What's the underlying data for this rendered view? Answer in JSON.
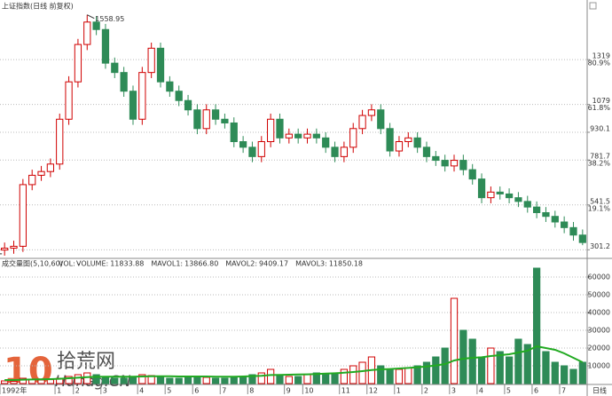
{
  "chart_data": [
    {
      "type": "candlestick",
      "title": "上证指数(日线 前复权)",
      "up_color": "#d00000",
      "down_color": "#2e8b57",
      "open": [
        300,
        310,
        320,
        650,
        700,
        720,
        760,
        1000,
        1200,
        1400,
        1520,
        1480,
        1300,
        1250,
        1150,
        1000,
        1250,
        1380,
        1200,
        1150,
        1100,
        1050,
        950,
        1050,
        1000,
        980,
        880,
        850,
        800,
        880,
        1000,
        900,
        920,
        900,
        920,
        900,
        850,
        800,
        850,
        950,
        1020,
        1050,
        950,
        830,
        880,
        900,
        850,
        800,
        780,
        750,
        780,
        730,
        680,
        580,
        610,
        600,
        580,
        560,
        530,
        500,
        480,
        450,
        420,
        380
      ],
      "close": [
        310,
        320,
        650,
        700,
        720,
        760,
        1000,
        1200,
        1400,
        1520,
        1480,
        1300,
        1250,
        1150,
        1000,
        1250,
        1380,
        1200,
        1150,
        1100,
        1050,
        950,
        1050,
        1000,
        980,
        880,
        850,
        800,
        880,
        1000,
        900,
        920,
        900,
        920,
        900,
        850,
        800,
        850,
        950,
        1020,
        1050,
        950,
        830,
        880,
        900,
        850,
        800,
        780,
        750,
        780,
        730,
        680,
        580,
        610,
        600,
        580,
        560,
        530,
        500,
        480,
        450,
        420,
        380,
        340
      ],
      "high": [
        340,
        350,
        680,
        730,
        750,
        790,
        1030,
        1230,
        1430,
        1558.95,
        1550,
        1510,
        1330,
        1280,
        1180,
        1280,
        1410,
        1410,
        1230,
        1180,
        1130,
        1080,
        1080,
        1080,
        1030,
        1010,
        910,
        880,
        910,
        1030,
        1030,
        950,
        950,
        950,
        950,
        930,
        880,
        880,
        980,
        1050,
        1080,
        1080,
        980,
        910,
        930,
        930,
        880,
        830,
        810,
        810,
        810,
        760,
        710,
        640,
        640,
        630,
        610,
        590,
        560,
        530,
        510,
        480,
        450,
        410
      ],
      "low": [
        270,
        280,
        290,
        620,
        670,
        690,
        730,
        970,
        1170,
        1370,
        1450,
        1270,
        1220,
        1120,
        970,
        970,
        1220,
        1170,
        1120,
        1070,
        1020,
        920,
        920,
        970,
        950,
        850,
        820,
        770,
        770,
        850,
        870,
        870,
        870,
        870,
        870,
        820,
        770,
        770,
        820,
        920,
        990,
        920,
        800,
        800,
        850,
        820,
        770,
        750,
        720,
        720,
        700,
        650,
        550,
        550,
        570,
        550,
        530,
        500,
        470,
        450,
        420,
        390,
        350,
        325.89
      ],
      "ylim": [
        260,
        1600
      ],
      "yticks": [
        1319,
        1079,
        930.1,
        781.7,
        541.5,
        301.2
      ],
      "ytick_ratios": [
        "80.9%",
        "61.8%",
        null,
        "38.2%",
        "19.1%",
        null
      ],
      "grid": true
    },
    {
      "type": "bar",
      "title": "成交量图(5,10,60)",
      "indicator": "VOL: -",
      "legend": [
        {
          "name": "VOLUME:",
          "value": 11833.88,
          "color": "#cc00cc"
        },
        {
          "name": "MAVOL1:",
          "value": 13866.8,
          "value_label": "13866.80",
          "color": "#cc00cc"
        },
        {
          "name": "MAVOL2:",
          "value": 9409.17,
          "color": "#808080"
        },
        {
          "name": "MAVOL3:",
          "value": 11850.18,
          "color": "#22aa22"
        }
      ],
      "categories": [
        "1992年",
        null,
        null,
        null,
        null,
        null,
        "1",
        null,
        "2",
        null,
        null,
        "3",
        null,
        null,
        null,
        "4",
        null,
        null,
        "5",
        null,
        null,
        "6",
        null,
        null,
        "7",
        null,
        null,
        "8",
        null,
        null,
        null,
        "9",
        null,
        "10",
        null,
        null,
        null,
        "11",
        null,
        null,
        "12",
        null,
        null,
        "1",
        null,
        null,
        "2",
        null,
        null,
        "3",
        null,
        null,
        "4",
        null,
        null,
        "5",
        null,
        null,
        "6",
        null,
        null,
        "7",
        null,
        null
      ],
      "series": [
        {
          "name": "VOLUME",
          "type": "bar",
          "values": [
            1500,
            1200,
            3000,
            2500,
            2000,
            2200,
            3000,
            4000,
            5000,
            6000,
            5000,
            4000,
            3000,
            3000,
            3500,
            5000,
            4500,
            3500,
            3000,
            3000,
            3500,
            4000,
            3500,
            3000,
            3000,
            3500,
            4000,
            5000,
            6000,
            8000,
            5000,
            4000,
            4000,
            5000,
            6000,
            5000,
            6000,
            8000,
            10000,
            12000,
            15000,
            10000,
            8000,
            8000,
            9000,
            10000,
            12000,
            15000,
            20000,
            48000,
            30000,
            25000,
            15000,
            20000,
            18000,
            15000,
            25000,
            22000,
            65000,
            18000,
            12000,
            10000,
            8000,
            12000
          ]
        },
        {
          "name": "MAVOL3",
          "type": "line",
          "color": "#22aa22",
          "values": [
            2000,
            2000,
            2200,
            2300,
            2400,
            2500,
            2700,
            3000,
            3300,
            3600,
            3800,
            3900,
            3900,
            3900,
            3900,
            4000,
            4100,
            4100,
            4100,
            4000,
            4000,
            4000,
            4000,
            3900,
            3900,
            3900,
            4000,
            4200,
            4400,
            4800,
            4900,
            5000,
            5100,
            5200,
            5400,
            5600,
            5800,
            6100,
            6500,
            7000,
            7600,
            8000,
            8200,
            8500,
            8800,
            9200,
            9600,
            10200,
            11000,
            13000,
            14000,
            14500,
            14800,
            15500,
            16000,
            16500,
            17500,
            18500,
            21000,
            20000,
            19000,
            17000,
            14500,
            12000
          ]
        }
      ],
      "ylim": [
        0,
        66000
      ],
      "yticks": [
        10000,
        20000,
        30000,
        40000,
        50000,
        60000
      ],
      "period": "日线"
    }
  ],
  "watermark": {
    "number": "10",
    "site": "Hunag.CN",
    "name": "拾荒网"
  }
}
